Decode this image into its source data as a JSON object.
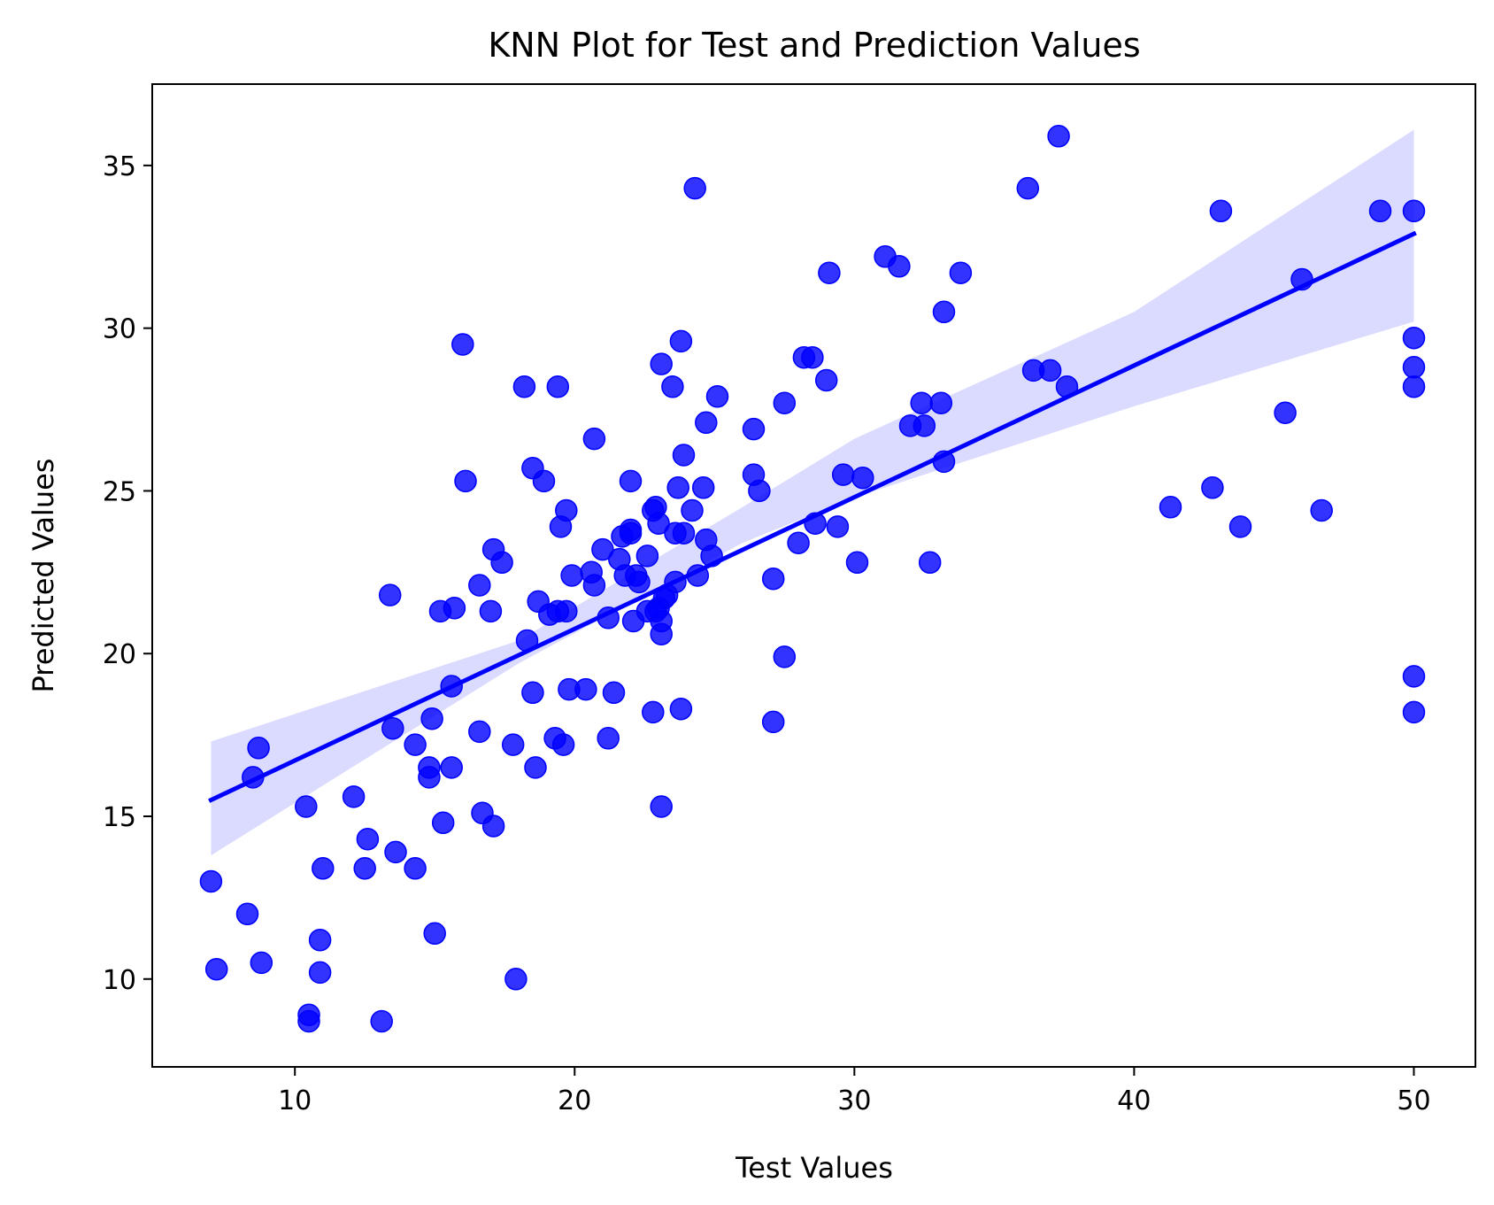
{
  "chart_data": {
    "type": "scatter",
    "title": "KNN Plot for Test and Prediction Values",
    "xlabel": "Test Values",
    "ylabel": "Predicted Values",
    "xlim": [
      4.9,
      52.2
    ],
    "ylim": [
      7.3,
      37.5
    ],
    "xticks": [
      10,
      20,
      30,
      40,
      50
    ],
    "yticks": [
      10,
      15,
      20,
      25,
      30,
      35
    ],
    "grid": false,
    "legend": "none",
    "colors": {
      "points": "#0000ff",
      "line": "#0000ff",
      "band": "#d9d9ff"
    },
    "regression": {
      "x": [
        7.0,
        50.0
      ],
      "y": [
        15.5,
        32.9
      ],
      "ci_upper": [
        [
          7.0,
          17.3
        ],
        [
          18.0,
          20.4
        ],
        [
          26.0,
          24.5
        ],
        [
          30.0,
          26.6
        ],
        [
          40.0,
          30.5
        ],
        [
          50.0,
          36.1
        ]
      ],
      "ci_lower": [
        [
          7.0,
          13.8
        ],
        [
          18.0,
          19.7
        ],
        [
          26.0,
          23.4
        ],
        [
          30.0,
          24.8
        ],
        [
          40.0,
          27.6
        ],
        [
          50.0,
          30.2
        ]
      ]
    },
    "points": [
      [
        7.0,
        13.0
      ],
      [
        7.2,
        10.3
      ],
      [
        8.3,
        12.0
      ],
      [
        8.5,
        16.2
      ],
      [
        8.7,
        17.1
      ],
      [
        8.8,
        10.5
      ],
      [
        10.4,
        15.3
      ],
      [
        10.5,
        8.9
      ],
      [
        10.5,
        8.7
      ],
      [
        10.9,
        11.2
      ],
      [
        10.9,
        10.2
      ],
      [
        11.0,
        13.4
      ],
      [
        12.1,
        15.6
      ],
      [
        12.5,
        13.4
      ],
      [
        12.6,
        14.3
      ],
      [
        13.1,
        8.7
      ],
      [
        13.4,
        21.8
      ],
      [
        13.5,
        17.7
      ],
      [
        13.6,
        13.9
      ],
      [
        14.3,
        17.2
      ],
      [
        14.3,
        13.4
      ],
      [
        14.8,
        16.5
      ],
      [
        14.8,
        16.2
      ],
      [
        14.9,
        18.0
      ],
      [
        15.0,
        11.4
      ],
      [
        15.2,
        21.3
      ],
      [
        15.3,
        14.8
      ],
      [
        15.6,
        16.5
      ],
      [
        15.6,
        19.0
      ],
      [
        15.7,
        21.4
      ],
      [
        16.0,
        29.5
      ],
      [
        16.1,
        25.3
      ],
      [
        16.6,
        22.1
      ],
      [
        16.6,
        17.6
      ],
      [
        16.7,
        15.1
      ],
      [
        17.0,
        21.3
      ],
      [
        17.1,
        23.2
      ],
      [
        17.1,
        14.7
      ],
      [
        17.4,
        22.8
      ],
      [
        17.8,
        17.2
      ],
      [
        17.9,
        10.0
      ],
      [
        18.2,
        28.2
      ],
      [
        18.3,
        20.4
      ],
      [
        18.5,
        25.7
      ],
      [
        18.5,
        18.8
      ],
      [
        18.6,
        16.5
      ],
      [
        18.7,
        21.6
      ],
      [
        18.9,
        25.3
      ],
      [
        19.1,
        21.2
      ],
      [
        19.3,
        17.4
      ],
      [
        19.4,
        28.2
      ],
      [
        19.4,
        21.3
      ],
      [
        19.5,
        23.9
      ],
      [
        19.6,
        17.2
      ],
      [
        19.7,
        24.4
      ],
      [
        19.7,
        21.3
      ],
      [
        19.8,
        18.9
      ],
      [
        19.9,
        22.4
      ],
      [
        20.4,
        18.9
      ],
      [
        20.6,
        22.5
      ],
      [
        20.7,
        26.6
      ],
      [
        20.7,
        22.1
      ],
      [
        21.0,
        23.2
      ],
      [
        21.2,
        21.1
      ],
      [
        21.2,
        17.4
      ],
      [
        21.4,
        18.8
      ],
      [
        21.6,
        22.9
      ],
      [
        21.7,
        23.6
      ],
      [
        21.8,
        22.4
      ],
      [
        22.0,
        25.3
      ],
      [
        22.0,
        23.8
      ],
      [
        22.0,
        23.7
      ],
      [
        22.1,
        21.0
      ],
      [
        22.2,
        22.4
      ],
      [
        22.3,
        22.2
      ],
      [
        22.6,
        23.0
      ],
      [
        22.6,
        21.3
      ],
      [
        22.8,
        18.2
      ],
      [
        22.8,
        24.4
      ],
      [
        22.9,
        24.5
      ],
      [
        22.9,
        21.3
      ],
      [
        23.0,
        21.4
      ],
      [
        23.0,
        24.0
      ],
      [
        23.1,
        28.9
      ],
      [
        23.1,
        21.0
      ],
      [
        23.1,
        20.6
      ],
      [
        23.1,
        15.3
      ],
      [
        23.2,
        21.7
      ],
      [
        23.3,
        21.8
      ],
      [
        23.5,
        28.2
      ],
      [
        23.6,
        22.2
      ],
      [
        23.6,
        23.7
      ],
      [
        23.7,
        25.1
      ],
      [
        23.8,
        18.3
      ],
      [
        23.8,
        29.6
      ],
      [
        23.9,
        23.7
      ],
      [
        23.9,
        26.1
      ],
      [
        24.2,
        24.4
      ],
      [
        24.3,
        34.3
      ],
      [
        24.4,
        22.4
      ],
      [
        24.6,
        25.1
      ],
      [
        24.7,
        27.1
      ],
      [
        24.7,
        23.5
      ],
      [
        24.9,
        23.0
      ],
      [
        25.1,
        27.9
      ],
      [
        26.4,
        26.9
      ],
      [
        26.4,
        25.5
      ],
      [
        26.6,
        25.0
      ],
      [
        27.1,
        22.3
      ],
      [
        27.1,
        17.9
      ],
      [
        27.5,
        27.7
      ],
      [
        27.5,
        19.9
      ],
      [
        28.0,
        23.4
      ],
      [
        28.2,
        29.1
      ],
      [
        28.5,
        29.1
      ],
      [
        28.6,
        24.0
      ],
      [
        29.0,
        28.4
      ],
      [
        29.1,
        31.7
      ],
      [
        29.4,
        23.9
      ],
      [
        29.6,
        25.5
      ],
      [
        30.1,
        22.8
      ],
      [
        30.3,
        25.4
      ],
      [
        31.1,
        32.2
      ],
      [
        31.6,
        31.9
      ],
      [
        32.0,
        27.0
      ],
      [
        32.4,
        27.7
      ],
      [
        32.5,
        27.0
      ],
      [
        32.7,
        22.8
      ],
      [
        33.1,
        27.7
      ],
      [
        33.2,
        30.5
      ],
      [
        33.2,
        25.9
      ],
      [
        33.8,
        31.7
      ],
      [
        36.2,
        34.3
      ],
      [
        36.4,
        28.7
      ],
      [
        37.0,
        28.7
      ],
      [
        37.3,
        35.9
      ],
      [
        37.6,
        28.2
      ],
      [
        41.3,
        24.5
      ],
      [
        42.8,
        25.1
      ],
      [
        43.1,
        33.6
      ],
      [
        43.8,
        23.9
      ],
      [
        45.4,
        27.4
      ],
      [
        46.0,
        31.5
      ],
      [
        46.7,
        24.4
      ],
      [
        48.8,
        33.6
      ],
      [
        50.0,
        33.6
      ],
      [
        50.0,
        29.7
      ],
      [
        50.0,
        28.8
      ],
      [
        50.0,
        28.2
      ],
      [
        50.0,
        19.3
      ],
      [
        50.0,
        18.2
      ]
    ]
  }
}
